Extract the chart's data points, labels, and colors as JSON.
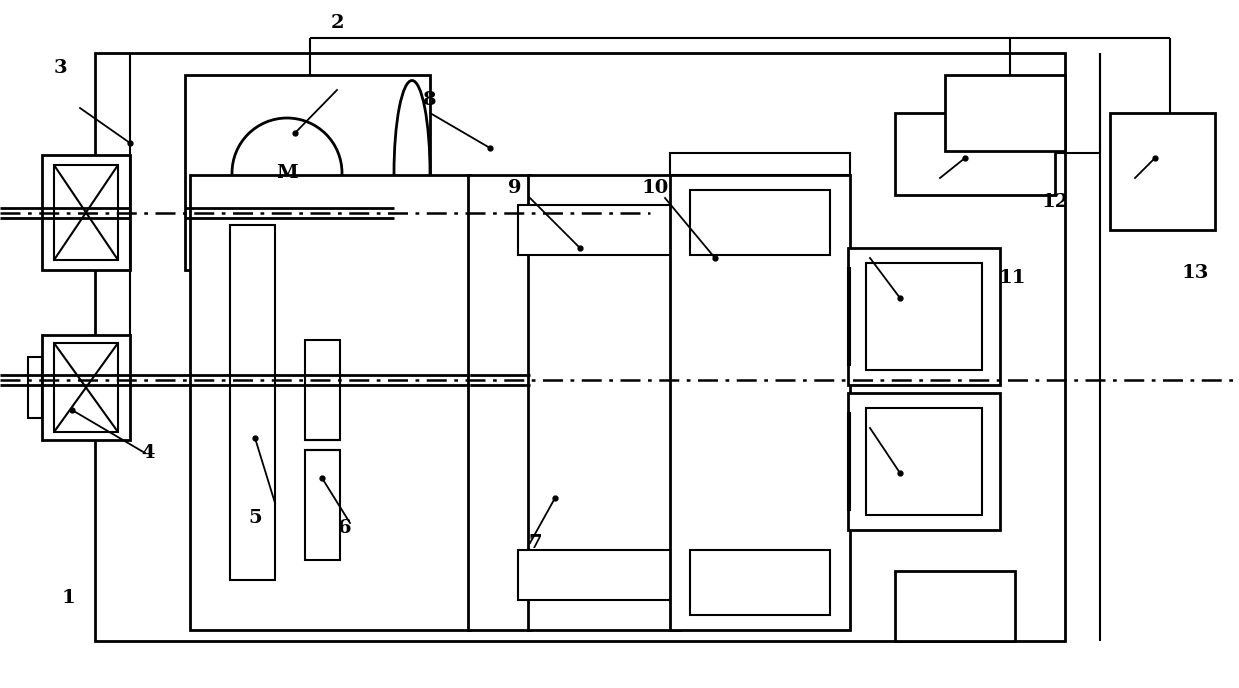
{
  "bg_color": "#ffffff",
  "lc": "#000000",
  "lw": 2.0,
  "lw_thin": 1.5,
  "fig_width": 12.39,
  "fig_height": 6.88
}
